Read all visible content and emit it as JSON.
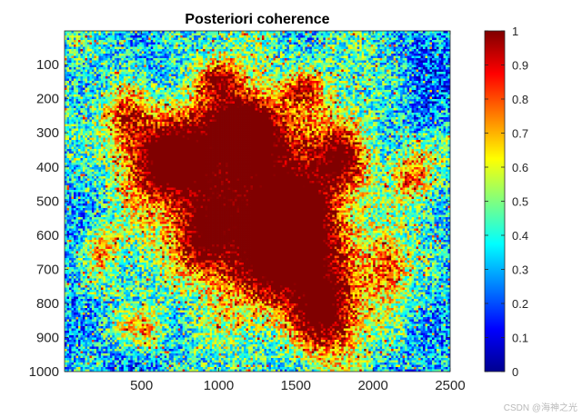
{
  "chart_data": {
    "type": "heatmap",
    "title": "Posteriori coherence",
    "xlabel": "",
    "ylabel": "",
    "xlim": [
      1,
      2500
    ],
    "ylim": [
      1,
      1000
    ],
    "y_direction": "reverse",
    "x_ticks": [
      500,
      1000,
      1500,
      2000,
      2500
    ],
    "y_ticks": [
      100,
      200,
      300,
      400,
      500,
      600,
      700,
      800,
      900,
      1000
    ],
    "colormap": "jet",
    "color_range": [
      0,
      1
    ],
    "colorbar_ticks": [
      0,
      0.1,
      0.2,
      0.3,
      0.4,
      0.5,
      0.6,
      0.7,
      0.8,
      0.9,
      1
    ],
    "colorbar_tick_labels": [
      "0",
      "0.1",
      "0.2",
      "0.3",
      "0.4",
      "0.5",
      "0.6",
      "0.7",
      "0.8",
      "0.9",
      "1"
    ],
    "description_values": {
      "background_coherence": 0.4,
      "high_coherence_region": 0.9
    }
  },
  "watermark": "CSDN @海神之光",
  "colors": {
    "jet_stops": [
      "#00008f",
      "#0000ff",
      "#00ffff",
      "#ffff00",
      "#ff0000",
      "#800000"
    ]
  }
}
